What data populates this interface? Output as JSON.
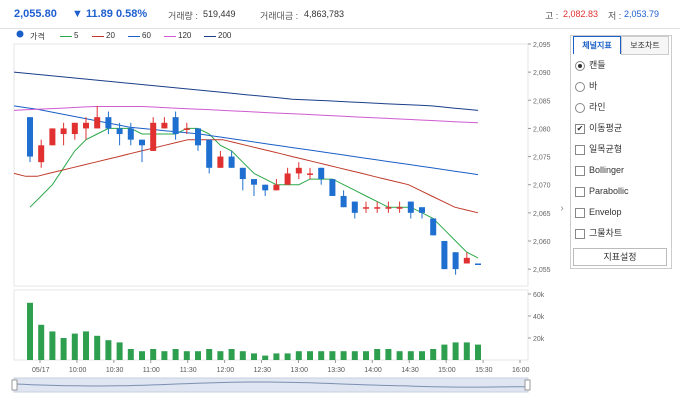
{
  "header": {
    "price": "2,055.80",
    "change_arrow": "▼",
    "change": "11.89",
    "change_pct": "0.58%",
    "volume_label": "거래량 :",
    "volume": "519,449",
    "value_label": "거래대금 :",
    "value": "4,863,783",
    "high_label": "고 :",
    "high": "2,082.83",
    "low_label": "저 :",
    "low": "2,053.79"
  },
  "legend": [
    {
      "label": "가격",
      "color": "#1a5fc7",
      "marker": "dot"
    },
    {
      "label": "5",
      "color": "#2ca84a",
      "marker": "line"
    },
    {
      "label": "20",
      "color": "#c0392b",
      "marker": "line"
    },
    {
      "label": "60",
      "color": "#1a5fc7",
      "marker": "line"
    },
    {
      "label": "120",
      "color": "#d05bd0",
      "marker": "line"
    },
    {
      "label": "200",
      "color": "#1a3e8a",
      "marker": "line"
    }
  ],
  "panel": {
    "tab_active": "체널지표",
    "tab_other": "보조차트",
    "chart_types": [
      {
        "label": "캔들",
        "selected": true
      },
      {
        "label": "바",
        "selected": false
      },
      {
        "label": "라인",
        "selected": false
      }
    ],
    "indicators": [
      {
        "label": "이동평균",
        "checked": true
      },
      {
        "label": "일목균형",
        "checked": false
      },
      {
        "label": "Bollinger",
        "checked": false
      },
      {
        "label": "Parabollic",
        "checked": false
      },
      {
        "label": "Envelop",
        "checked": false
      },
      {
        "label": "그물차트",
        "checked": false
      }
    ],
    "settings_button": "지표설정"
  },
  "chart_data": {
    "type": "candlestick",
    "y_ticks": [
      "2,095",
      "2,090",
      "2,085",
      "2,080",
      "2,075",
      "2,070",
      "2,065",
      "2,060",
      "2,055"
    ],
    "ylim": [
      2052,
      2095
    ],
    "volume_ticks": [
      "60k",
      "40k",
      "20k"
    ],
    "volume_lim": [
      0,
      60000
    ],
    "x_ticks": [
      "05/17",
      "10:00",
      "10:30",
      "11:00",
      "11:30",
      "12:00",
      "12:30",
      "13:00",
      "13:30",
      "14:00",
      "14:30",
      "15:00",
      "15:30",
      "16:00"
    ],
    "candles": [
      [
        2082,
        2082,
        2074,
        2075
      ],
      [
        2074,
        2078,
        2073,
        2077
      ],
      [
        2077,
        2080,
        2077,
        2080
      ],
      [
        2079,
        2081,
        2077,
        2080
      ],
      [
        2079,
        2081,
        2078,
        2081
      ],
      [
        2080,
        2082,
        2078,
        2081
      ],
      [
        2080,
        2084,
        2080,
        2082
      ],
      [
        2082,
        2083,
        2079,
        2080
      ],
      [
        2080,
        2081,
        2077,
        2079
      ],
      [
        2080,
        2081,
        2077,
        2078
      ],
      [
        2078,
        2078,
        2074,
        2077
      ],
      [
        2076,
        2082,
        2076,
        2081
      ],
      [
        2080,
        2082,
        2080,
        2081
      ],
      [
        2082,
        2083,
        2078,
        2079
      ],
      [
        2080,
        2081,
        2079,
        2080
      ],
      [
        2080,
        2080,
        2076,
        2077
      ],
      [
        2078,
        2078,
        2072,
        2073
      ],
      [
        2073,
        2076,
        2073,
        2075
      ],
      [
        2075,
        2076,
        2073,
        2073
      ],
      [
        2073,
        2073,
        2069,
        2071
      ],
      [
        2071,
        2071,
        2068,
        2070
      ],
      [
        2070,
        2070,
        2068,
        2069
      ],
      [
        2069,
        2071,
        2069,
        2070
      ],
      [
        2070,
        2073,
        2070,
        2072
      ],
      [
        2072,
        2074,
        2071,
        2073
      ],
      [
        2072,
        2073,
        2071,
        2072
      ],
      [
        2073,
        2073,
        2070,
        2071
      ],
      [
        2071,
        2071,
        2068,
        2068
      ],
      [
        2068,
        2069,
        2066,
        2066
      ],
      [
        2067,
        2067,
        2064,
        2065
      ],
      [
        2066,
        2067,
        2065,
        2066
      ],
      [
        2066,
        2067,
        2065,
        2066
      ],
      [
        2066,
        2067,
        2065,
        2066
      ],
      [
        2066,
        2067,
        2065,
        2066
      ],
      [
        2067,
        2067,
        2064,
        2065
      ],
      [
        2066,
        2066,
        2064,
        2065
      ],
      [
        2064,
        2064,
        2061,
        2061
      ],
      [
        2060,
        2060,
        2055,
        2055
      ],
      [
        2058,
        2058,
        2054,
        2055
      ],
      [
        2056,
        2058,
        2056,
        2057
      ],
      [
        2056,
        2056,
        2056,
        2055.8
      ]
    ],
    "volumes": [
      52000,
      32000,
      26000,
      20000,
      24000,
      26000,
      22000,
      18000,
      16000,
      10000,
      8000,
      10000,
      8000,
      10000,
      8000,
      8000,
      10000,
      8000,
      10000,
      8000,
      6000,
      4000,
      6000,
      6000,
      8000,
      8000,
      8000,
      8000,
      8000,
      8000,
      8000,
      10000,
      10000,
      8000,
      8000,
      8000,
      10000,
      14000,
      16000,
      16000,
      14000
    ],
    "ma": {
      "5": [
        2066,
        2068,
        2070,
        2073,
        2076,
        2078,
        2079,
        2080,
        2080,
        2080,
        2079,
        2079,
        2079,
        2079,
        2080,
        2080,
        2079,
        2077,
        2076,
        2074,
        2072,
        2071,
        2070,
        2070,
        2070,
        2071,
        2071,
        2071,
        2070,
        2069,
        2068,
        2067,
        2066,
        2066,
        2066,
        2065,
        2064,
        2062,
        2060,
        2058,
        2057
      ],
      "20": [
        2072,
        2071.5,
        2071.5,
        2072,
        2072.5,
        2073,
        2073.5,
        2074,
        2074.5,
        2075,
        2075.5,
        2076,
        2076.5,
        2077,
        2077.5,
        2078,
        2078,
        2078,
        2078,
        2077.5,
        2077,
        2076.5,
        2076,
        2075.5,
        2075,
        2074.5,
        2074,
        2073.5,
        2073,
        2072.5,
        2072,
        2071.5,
        2071,
        2070.5,
        2070,
        2069,
        2068,
        2067,
        2066,
        2065.5,
        2065
      ],
      "60": [
        2084,
        2083.7,
        2083.4,
        2083,
        2082.6,
        2082.2,
        2081.8,
        2081.4,
        2081,
        2080.6,
        2080.2,
        2080,
        2079.8,
        2079.6,
        2079.4,
        2079.2,
        2079,
        2078.7,
        2078.4,
        2078.1,
        2077.8,
        2077.5,
        2077.2,
        2076.9,
        2076.6,
        2076.3,
        2076,
        2075.7,
        2075.4,
        2075.1,
        2074.8,
        2074.5,
        2074.2,
        2073.9,
        2073.6,
        2073.3,
        2073,
        2072.7,
        2072.4,
        2072.1,
        2071.8
      ],
      "120": [
        2083.2,
        2083.3,
        2083.4,
        2083.5,
        2083.6,
        2083.7,
        2083.8,
        2083.9,
        2083.9,
        2083.9,
        2083.9,
        2083.9,
        2083.8,
        2083.7,
        2083.6,
        2083.5,
        2083.4,
        2083.3,
        2083.2,
        2083.1,
        2083,
        2082.9,
        2082.8,
        2082.7,
        2082.6,
        2082.5,
        2082.4,
        2082.3,
        2082.2,
        2082.1,
        2082,
        2081.9,
        2081.8,
        2081.7,
        2081.6,
        2081.5,
        2081.4,
        2081.3,
        2081.2,
        2081.1,
        2081
      ],
      "200": [
        2090,
        2089.8,
        2089.6,
        2089.4,
        2089.2,
        2089,
        2088.8,
        2088.6,
        2088.4,
        2088.2,
        2088,
        2087.8,
        2087.6,
        2087.4,
        2087.2,
        2087,
        2086.8,
        2086.6,
        2086.4,
        2086.2,
        2086,
        2085.8,
        2085.6,
        2085.4,
        2085.2,
        2085.1,
        2085,
        2084.9,
        2084.8,
        2084.7,
        2084.6,
        2084.5,
        2084.4,
        2084.3,
        2084.2,
        2084.1,
        2084,
        2083.8,
        2083.6,
        2083.4,
        2083.2
      ]
    }
  }
}
